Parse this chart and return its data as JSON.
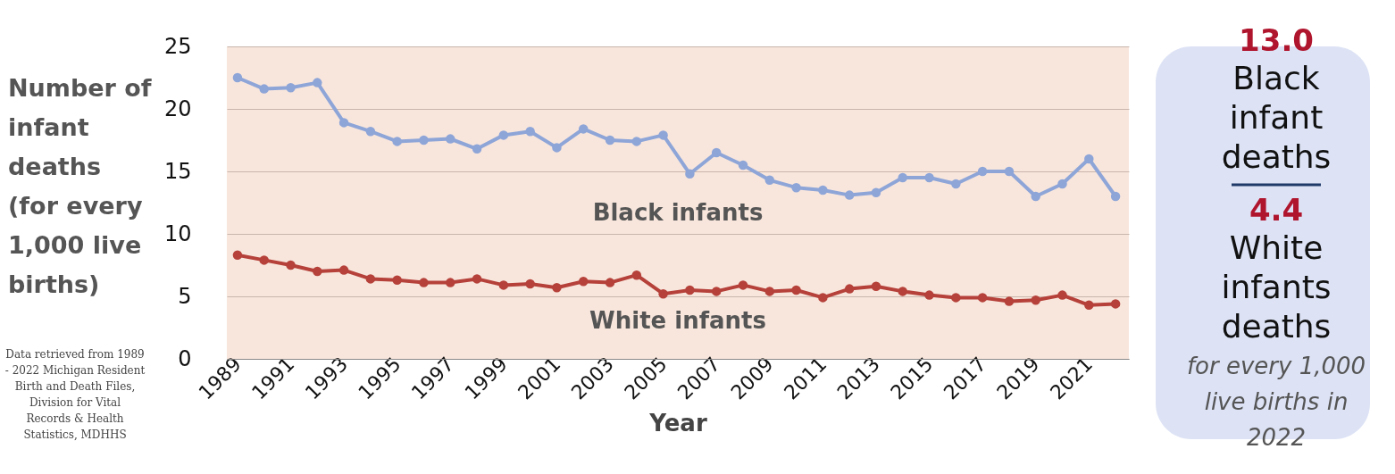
{
  "chart_data": {
    "type": "line",
    "xlabel": "Year",
    "ylabel": "Number of infant deaths (for every 1,000 live births)",
    "x": [
      1989,
      1990,
      1991,
      1992,
      1993,
      1994,
      1995,
      1996,
      1997,
      1998,
      1999,
      2000,
      2001,
      2002,
      2003,
      2004,
      2005,
      2006,
      2007,
      2008,
      2009,
      2010,
      2011,
      2012,
      2013,
      2014,
      2015,
      2016,
      2017,
      2018,
      2019,
      2020,
      2021,
      2022
    ],
    "series": [
      {
        "name": "Black infants",
        "color": "#8ea5d8",
        "values": [
          22.5,
          21.6,
          21.7,
          22.1,
          18.9,
          18.2,
          17.4,
          17.5,
          17.6,
          16.8,
          17.9,
          18.2,
          16.9,
          18.4,
          17.5,
          17.4,
          17.9,
          14.8,
          16.5,
          15.5,
          14.3,
          13.7,
          13.5,
          13.1,
          13.3,
          14.5,
          14.5,
          14.0,
          15.0,
          15.0,
          13.0,
          14.0,
          16.0,
          13.0
        ]
      },
      {
        "name": "White infants",
        "color": "#b5413a",
        "values": [
          8.3,
          7.9,
          7.5,
          7.0,
          7.1,
          6.4,
          6.3,
          6.1,
          6.1,
          6.4,
          5.9,
          6.0,
          5.7,
          6.2,
          6.1,
          6.7,
          5.2,
          5.5,
          5.4,
          5.9,
          5.4,
          5.5,
          4.9,
          5.6,
          5.8,
          5.4,
          5.1,
          4.9,
          4.9,
          4.6,
          4.7,
          5.1,
          4.3,
          4.4
        ]
      }
    ],
    "xlim": [
      1988.6,
      2022.5
    ],
    "xticks": [
      1989,
      1991,
      1993,
      1995,
      1997,
      1999,
      2001,
      2003,
      2005,
      2007,
      2009,
      2011,
      2013,
      2015,
      2017,
      2019,
      2021
    ],
    "ylim": [
      0,
      25
    ],
    "yticks": [
      0,
      5,
      10,
      15,
      20,
      25
    ],
    "grid": "y",
    "marker": "circle",
    "line_style": "solid",
    "annotations": [
      "Data retrieved from 1989 - 2022 Michigan Resident Birth and Death Files, Division for Vital Records & Health Statistics, MDHHS",
      "13.0",
      "Black infant deaths",
      "4.4",
      "White infants deaths",
      "for every 1,000 live births in 2022"
    ]
  }
}
